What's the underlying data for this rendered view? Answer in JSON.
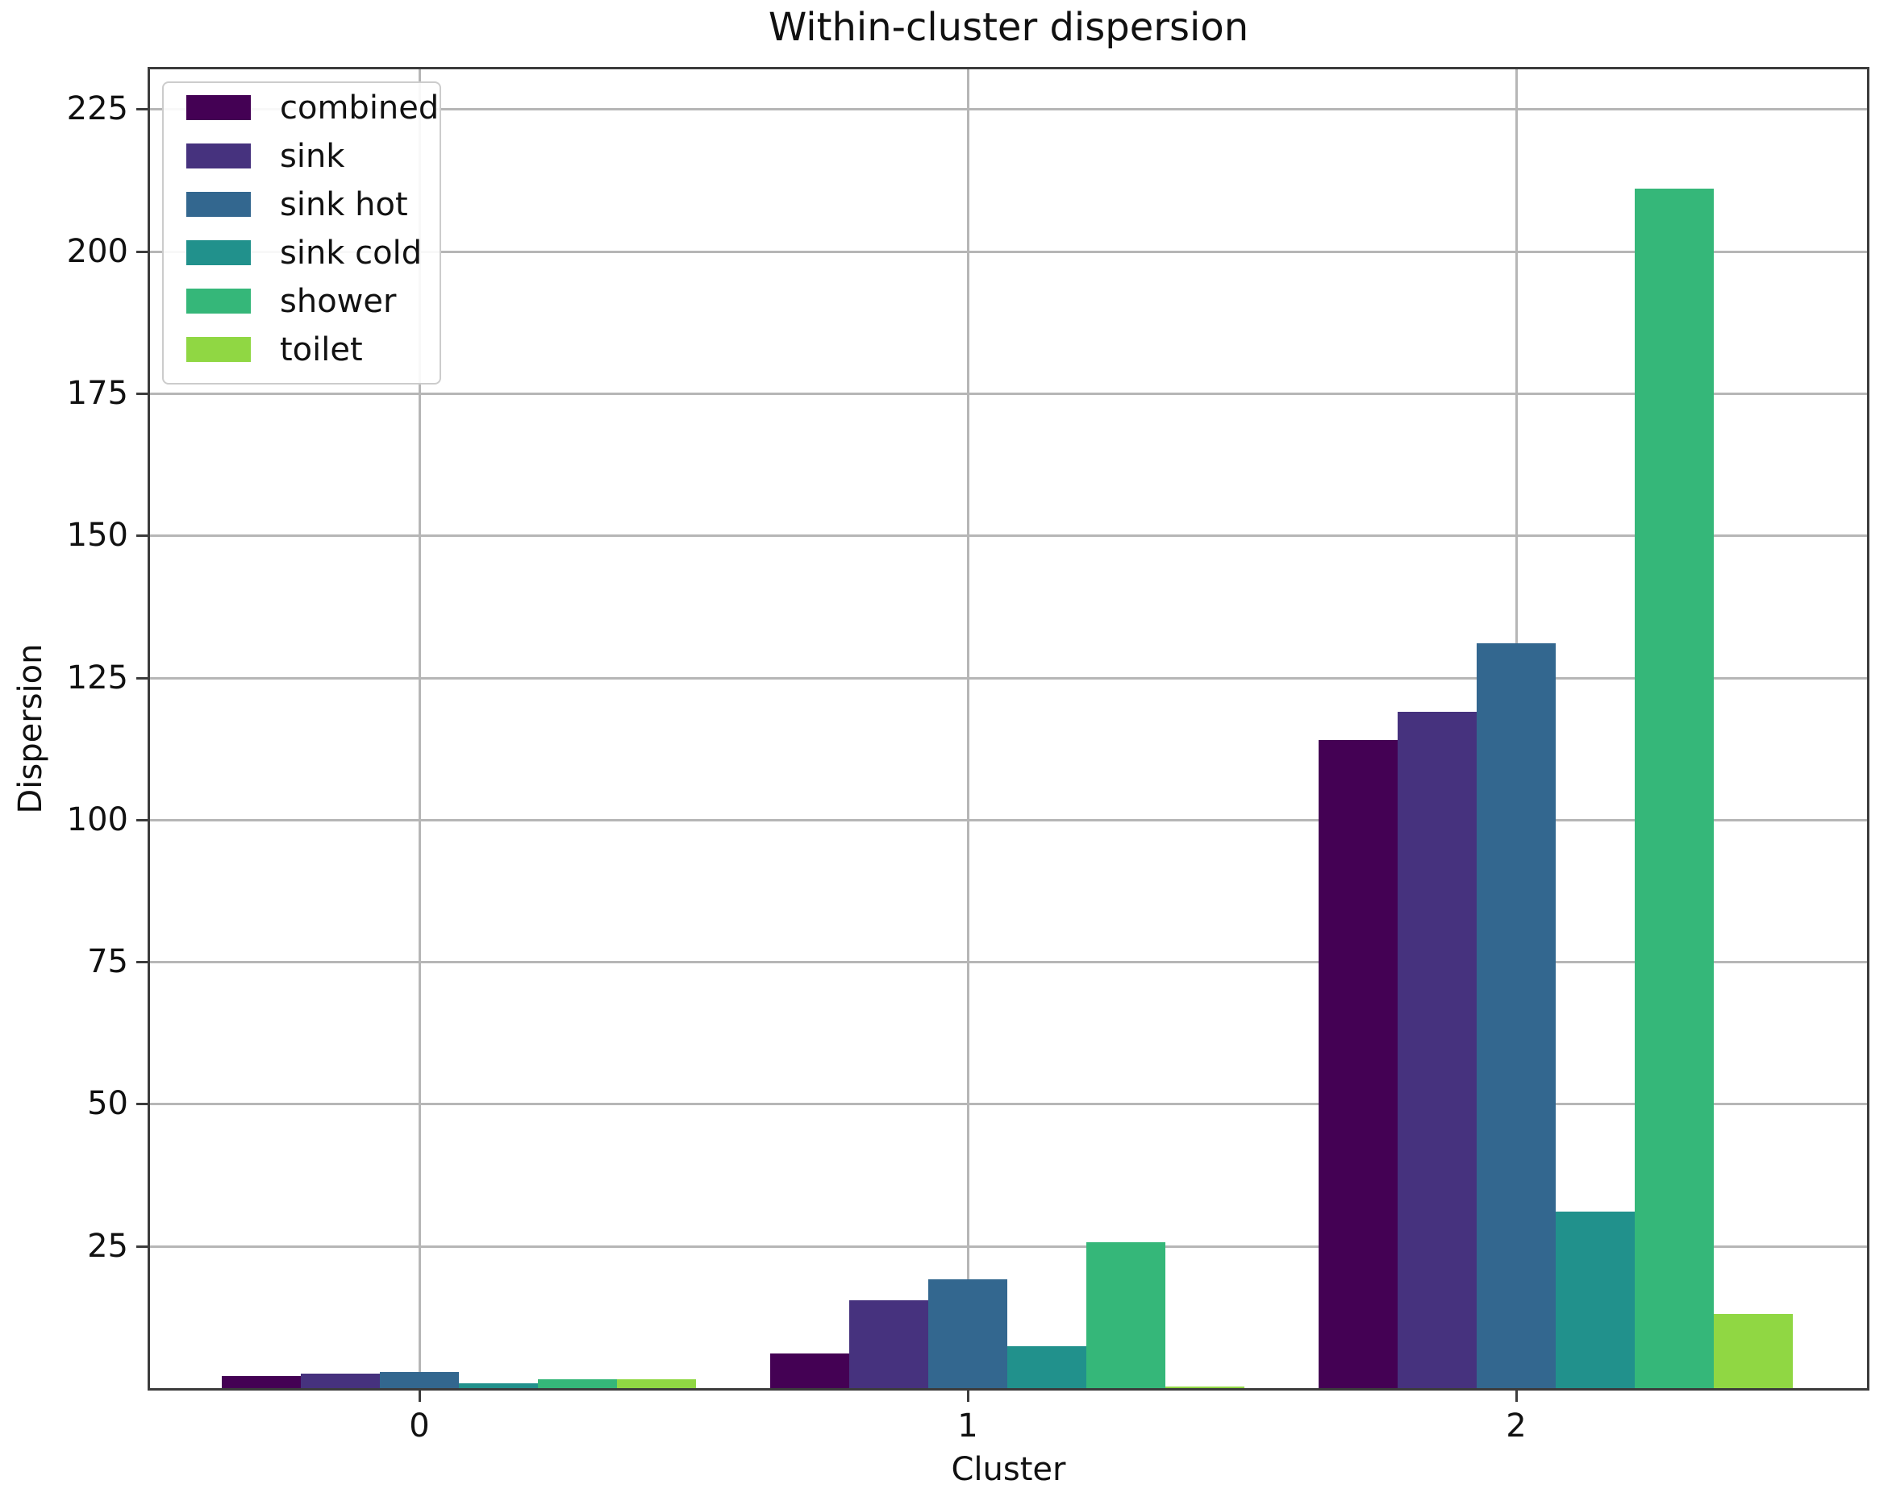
{
  "figure": {
    "background": "#ffffff",
    "text_color": "#111111",
    "grid_color": "#b6b6b6",
    "spine_color": "#3c3c3c"
  },
  "chart": {
    "title": "Within-cluster dispersion",
    "xlabel": "Cluster",
    "ylabel": "Dispersion"
  },
  "chart_data": {
    "type": "bar",
    "title": "Within-cluster dispersion",
    "xlabel": "Cluster",
    "ylabel": "Dispersion",
    "categories": [
      "0",
      "1",
      "2"
    ],
    "series": [
      {
        "name": "combined",
        "color": "#440154",
        "values": [
          2.1,
          6.1,
          114
        ]
      },
      {
        "name": "sink",
        "color": "#46327e",
        "values": [
          2.5,
          15.4,
          119
        ]
      },
      {
        "name": "sink hot",
        "color": "#33678f",
        "values": [
          2.9,
          19.1,
          131
        ]
      },
      {
        "name": "sink cold",
        "color": "#21918c",
        "values": [
          0.8,
          7.4,
          31
        ]
      },
      {
        "name": "shower",
        "color": "#35b779",
        "values": [
          1.5,
          25.7,
          211
        ]
      },
      {
        "name": "toilet",
        "color": "#90d743",
        "values": [
          1.5,
          0.3,
          13
        ]
      }
    ],
    "yticks": [
      25,
      50,
      75,
      100,
      125,
      150,
      175,
      200,
      225
    ],
    "ylim": [
      0,
      232
    ],
    "grid": true,
    "legend_position": "upper left"
  }
}
